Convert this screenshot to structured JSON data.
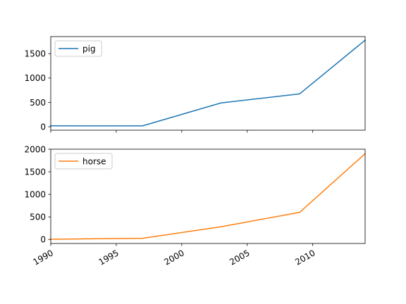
{
  "chart_data": [
    {
      "type": "line",
      "x": [
        1990,
        1997,
        2003,
        2009,
        2014
      ],
      "series": [
        {
          "name": "pig",
          "values": [
            20,
            18,
            489,
            675,
            1776
          ],
          "color": "#1f77b4"
        }
      ],
      "xlim": [
        1990,
        2014
      ],
      "ylim": [
        -70,
        1850
      ],
      "xticks": [
        1990,
        1995,
        2000,
        2005,
        2010
      ],
      "yticks": [
        0,
        500,
        1000,
        1500
      ],
      "xtick_labels_visible": false,
      "legend": "upper-left",
      "grid": false
    },
    {
      "type": "line",
      "x": [
        1990,
        1997,
        2003,
        2009,
        2014
      ],
      "series": [
        {
          "name": "horse",
          "values": [
            4,
            25,
            281,
            600,
            1900
          ],
          "color": "#ff7f0e"
        }
      ],
      "xlim": [
        1990,
        2014
      ],
      "ylim": [
        -90,
        2000
      ],
      "xticks": [
        1990,
        1995,
        2000,
        2005,
        2010
      ],
      "yticks": [
        0,
        500,
        1000,
        1500,
        2000
      ],
      "xtick_labels_visible": true,
      "legend": "upper-left",
      "grid": false
    }
  ]
}
